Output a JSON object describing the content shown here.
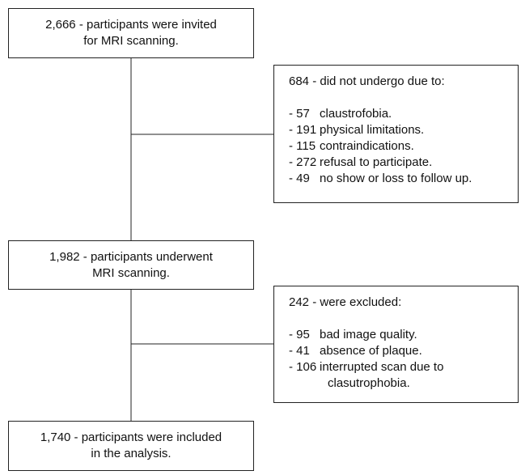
{
  "nodes": [
    {
      "lines": [
        "2,666 - participants were invited",
        "for MRI scanning."
      ]
    },
    {
      "lines": [
        "1,982 - participants underwent",
        "MRI scanning."
      ]
    },
    {
      "lines": [
        "1,740 - participants were included",
        "in the analysis."
      ]
    }
  ],
  "exclusions": [
    {
      "heading": "684 - did not undergo due to:",
      "items": [
        {
          "count": "- 57",
          "reason": [
            "claustrofobia."
          ]
        },
        {
          "count": "- 191",
          "reason": [
            "physical limitations."
          ]
        },
        {
          "count": "- 115",
          "reason": [
            "contraindications."
          ]
        },
        {
          "count": "- 272",
          "reason": [
            "refusal to participate."
          ]
        },
        {
          "count": "- 49",
          "reason": [
            "no show or loss to follow up."
          ]
        }
      ]
    },
    {
      "heading": "242 - were excluded:",
      "items": [
        {
          "count": "- 95",
          "reason": [
            "bad image quality."
          ]
        },
        {
          "count": "- 41",
          "reason": [
            "absence of plaque."
          ]
        },
        {
          "count": "- 106",
          "reason": [
            "interrupted scan due to",
            "clasutrophobia."
          ]
        }
      ]
    }
  ]
}
